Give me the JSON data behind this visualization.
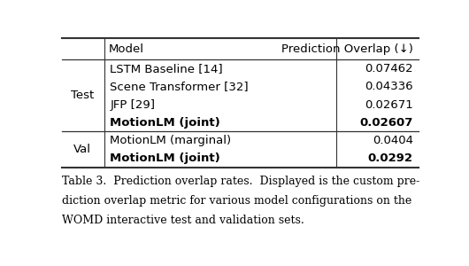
{
  "caption": "Table 3.  Prediction overlap rates.  Displayed is the custom pre-\ndiction overlap metric for various model configurations on the\nWOMD interactive test and validation sets.",
  "col_headers": [
    "Model",
    "Prediction Overlap (↓)"
  ],
  "sections": [
    {
      "section_label": "Test",
      "rows": [
        {
          "model": "LSTM Baseline [14]",
          "value": "0.07462",
          "bold": false
        },
        {
          "model": "Scene Transformer [32]",
          "value": "0.04336",
          "bold": false
        },
        {
          "model": "JFP [29]",
          "value": "0.02671",
          "bold": false
        },
        {
          "model": "MotionLM (joint)",
          "value": "0.02607",
          "bold": true
        }
      ]
    },
    {
      "section_label": "Val",
      "rows": [
        {
          "model": "MotionLM (marginal)",
          "value": "0.0404",
          "bold": false
        },
        {
          "model": "MotionLM (joint)",
          "value": "0.0292",
          "bold": true
        }
      ]
    }
  ],
  "bg_color": "#ffffff",
  "text_color": "#000000",
  "font_size": 9.5,
  "caption_font_size": 9.0,
  "line_color": "#333333"
}
